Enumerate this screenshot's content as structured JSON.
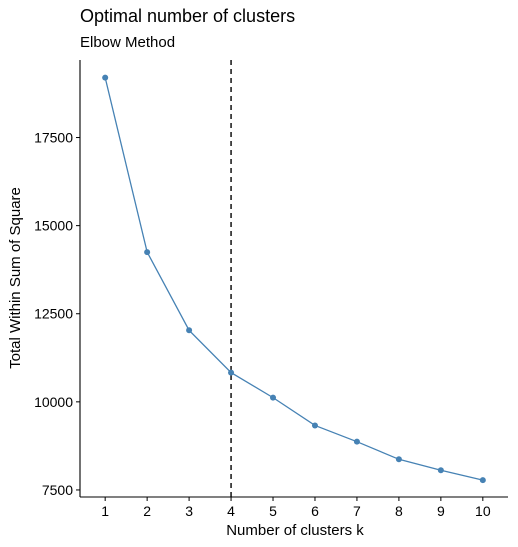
{
  "chart_data": {
    "type": "line",
    "title": "Optimal number of clusters",
    "subtitle": "Elbow Method",
    "xlabel": "Number of clusters k",
    "ylabel": "Total Within Sum of Square",
    "x": [
      1,
      2,
      3,
      4,
      5,
      6,
      7,
      8,
      9,
      10
    ],
    "y_ticks": [
      7500,
      10000,
      12500,
      15000,
      17500
    ],
    "xlim": [
      0.4,
      10.6
    ],
    "ylim": [
      7300,
      19700
    ],
    "series": [
      {
        "values": [
          19200,
          14250,
          12030,
          10830,
          10120,
          9330,
          8870,
          8370,
          8060,
          7780
        ],
        "color": "#4682B4"
      }
    ],
    "vline": {
      "x": 4,
      "style": "dashed",
      "color": "#000000"
    },
    "grid": false,
    "legend": "none"
  }
}
